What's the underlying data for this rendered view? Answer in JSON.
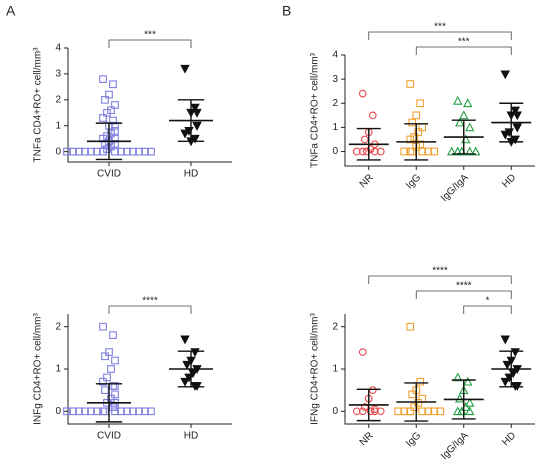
{
  "panels": [
    "A",
    "B"
  ],
  "chart_data": [
    {
      "type": "dotplot",
      "ylabel": "TNFa CD4+RO+ cell/mm³",
      "ylim": [
        -0.4,
        4
      ],
      "yticks": [
        0,
        1,
        2,
        3,
        4
      ],
      "groups": [
        {
          "name": "CVID",
          "color": "#7f7fe0",
          "marker": "square",
          "mean": 0.4,
          "sd": 0.7,
          "values": [
            2.8,
            2.6,
            2.2,
            2.0,
            1.8,
            1.6,
            1.5,
            1.3,
            1.2,
            1.0,
            1.0,
            0.8,
            0.7,
            0.6,
            0.5,
            0.5,
            0.4,
            0.3,
            0.3,
            0.2,
            0.1,
            0,
            0,
            0,
            0,
            0,
            0,
            0,
            0,
            0,
            0,
            0,
            0,
            0,
            0,
            0
          ]
        },
        {
          "name": "HD",
          "color": "#111111",
          "marker": "triangle-down",
          "mean": 1.2,
          "sd": 0.8,
          "values": [
            3.2,
            1.7,
            1.5,
            1.5,
            1.0,
            1.0,
            0.8,
            0.7,
            0.5,
            0.4
          ]
        }
      ],
      "brackets": [
        {
          "from": 0,
          "to": 1,
          "label": "***"
        }
      ]
    },
    {
      "type": "dotplot",
      "ylabel": "TNFa CD4+RO+ cell/mm³",
      "ylim": [
        -0.6,
        4
      ],
      "yticks": [
        0,
        1,
        2,
        3,
        4
      ],
      "xlabel_rotation": 45,
      "groups": [
        {
          "name": "NR",
          "color": "#e84848",
          "marker": "circle",
          "mean": 0.3,
          "sd": 0.65,
          "values": [
            2.4,
            1.5,
            0.8,
            0.5,
            0.3,
            0.1,
            0,
            0,
            0,
            0,
            0
          ]
        },
        {
          "name": "IgG",
          "color": "#f0a030",
          "marker": "square",
          "mean": 0.4,
          "sd": 0.75,
          "values": [
            2.8,
            2.0,
            1.5,
            1.2,
            1.0,
            0.8,
            0.6,
            0.5,
            0.3,
            0.2,
            0,
            0,
            0,
            0,
            0,
            0
          ]
        },
        {
          "name": "IgG/IgA",
          "color": "#22a045",
          "marker": "triangle-up",
          "mean": 0.6,
          "sd": 0.7,
          "values": [
            2.1,
            2.0,
            1.5,
            1.2,
            1.0,
            0.5,
            0,
            0,
            0,
            0,
            0
          ]
        },
        {
          "name": "HD",
          "color": "#111111",
          "marker": "triangle-down",
          "mean": 1.2,
          "sd": 0.8,
          "values": [
            3.2,
            1.7,
            1.5,
            1.5,
            1.0,
            1.0,
            0.8,
            0.7,
            0.5,
            0.4
          ]
        }
      ],
      "brackets": [
        {
          "from": 0,
          "to": 3,
          "label": "***"
        },
        {
          "from": 1,
          "to": 3,
          "label": "***"
        }
      ]
    },
    {
      "type": "dotplot",
      "ylabel": "INFg CD4+RO+ cell/mm³",
      "ylim": [
        -0.3,
        2.3
      ],
      "yticks": [
        0,
        1,
        2
      ],
      "groups": [
        {
          "name": "CVID",
          "color": "#7f7fe0",
          "marker": "square",
          "mean": 0.2,
          "sd": 0.45,
          "values": [
            2.0,
            1.8,
            1.4,
            1.3,
            1.2,
            1.0,
            0.8,
            0.7,
            0.6,
            0.6,
            0.5,
            0.4,
            0.3,
            0.2,
            0.2,
            0.1,
            0.1,
            0,
            0,
            0,
            0,
            0,
            0,
            0,
            0,
            0,
            0,
            0,
            0,
            0,
            0,
            0
          ]
        },
        {
          "name": "HD",
          "color": "#111111",
          "marker": "triangle-down",
          "mean": 1.0,
          "sd": 0.42,
          "values": [
            1.7,
            1.4,
            1.2,
            1.1,
            1.0,
            0.9,
            0.8,
            0.7,
            0.6,
            0.6
          ]
        }
      ],
      "brackets": [
        {
          "from": 0,
          "to": 1,
          "label": "****"
        }
      ]
    },
    {
      "type": "dotplot",
      "ylabel": "IFNg CD4+RO+ cell/mm³",
      "ylim": [
        -0.3,
        2.3
      ],
      "yticks": [
        0,
        1,
        2
      ],
      "xlabel_rotation": 45,
      "groups": [
        {
          "name": "NR",
          "color": "#e84848",
          "marker": "circle",
          "mean": 0.15,
          "sd": 0.37,
          "values": [
            1.4,
            0.5,
            0.3,
            0.1,
            0.05,
            0,
            0,
            0,
            0,
            0
          ]
        },
        {
          "name": "IgG",
          "color": "#f0a030",
          "marker": "square",
          "mean": 0.22,
          "sd": 0.45,
          "values": [
            2.0,
            0.7,
            0.5,
            0.4,
            0.3,
            0.2,
            0.1,
            0,
            0,
            0,
            0,
            0,
            0,
            0,
            0
          ]
        },
        {
          "name": "IgG/IgA",
          "color": "#22a045",
          "marker": "triangle-up",
          "mean": 0.28,
          "sd": 0.46,
          "values": [
            0.8,
            0.7,
            0.5,
            0.3,
            0.2,
            0.1,
            0,
            0,
            0
          ]
        },
        {
          "name": "HD",
          "color": "#111111",
          "marker": "triangle-down",
          "mean": 1.0,
          "sd": 0.42,
          "values": [
            1.7,
            1.4,
            1.2,
            1.1,
            1.0,
            0.9,
            0.8,
            0.7,
            0.6,
            0.6
          ]
        }
      ],
      "brackets": [
        {
          "from": 0,
          "to": 3,
          "label": "****"
        },
        {
          "from": 1,
          "to": 3,
          "label": "****"
        },
        {
          "from": 2,
          "to": 3,
          "label": "*"
        }
      ]
    }
  ]
}
